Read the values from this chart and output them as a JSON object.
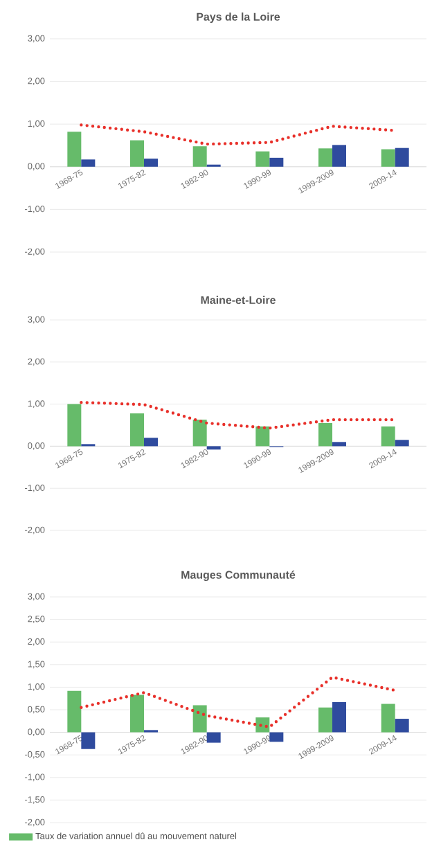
{
  "chart_data": [
    {
      "type": "bar",
      "title": "Pays de la Loire",
      "categories": [
        "1968-75",
        "1975-82",
        "1982-90",
        "1990-99",
        "1999-2009",
        "2009-14"
      ],
      "series": [
        {
          "color": "#66bb6a",
          "values": [
            0.82,
            0.62,
            0.48,
            0.36,
            0.43,
            0.41
          ]
        },
        {
          "color": "#2f4b9e",
          "values": [
            0.17,
            0.19,
            0.05,
            0.21,
            0.51,
            0.44
          ]
        },
        {
          "type": "line",
          "color": "#e8302a",
          "line_style": "dotted",
          "values": [
            0.98,
            0.82,
            0.53,
            0.57,
            0.95,
            0.85
          ]
        }
      ],
      "ylim": [
        -2,
        3
      ],
      "yticks": [
        {
          "value": -2,
          "label": "-2,00"
        },
        {
          "value": -1,
          "label": "-1,00"
        },
        {
          "value": 0,
          "label": "0,00"
        },
        {
          "value": 1,
          "label": "1,00"
        },
        {
          "value": 2,
          "label": "2,00"
        },
        {
          "value": 3,
          "label": "3,00"
        }
      ],
      "grid": "y"
    },
    {
      "type": "bar",
      "title": "Maine-et-Loire",
      "categories": [
        "1968-75",
        "1975-82",
        "1982-90",
        "1990-99",
        "1999-2009",
        "2009-14"
      ],
      "series": [
        {
          "color": "#66bb6a",
          "values": [
            1.0,
            0.78,
            0.63,
            0.47,
            0.55,
            0.47
          ]
        },
        {
          "color": "#2f4b9e",
          "values": [
            0.05,
            0.2,
            -0.08,
            -0.02,
            0.1,
            0.15
          ]
        },
        {
          "type": "line",
          "color": "#e8302a",
          "line_style": "dotted",
          "values": [
            1.04,
            0.99,
            0.55,
            0.43,
            0.63,
            0.63
          ]
        }
      ],
      "ylim": [
        -2,
        3
      ],
      "yticks": [
        {
          "value": -2,
          "label": "-2,00"
        },
        {
          "value": -1,
          "label": "-1,00"
        },
        {
          "value": 0,
          "label": "0,00"
        },
        {
          "value": 1,
          "label": "1,00"
        },
        {
          "value": 2,
          "label": "2,00"
        },
        {
          "value": 3,
          "label": "3,00"
        }
      ],
      "grid": "y"
    },
    {
      "type": "bar",
      "title": "Mauges Communauté",
      "categories": [
        "1968-75",
        "1975-82",
        "1982-90",
        "1990-99",
        "1999-2009",
        "2009-14"
      ],
      "series": [
        {
          "name": "Taux de variation annuel dû au mouvement naturel",
          "color": "#66bb6a",
          "values": [
            0.92,
            0.83,
            0.6,
            0.33,
            0.55,
            0.63
          ]
        },
        {
          "color": "#2f4b9e",
          "values": [
            -0.37,
            0.05,
            -0.23,
            -0.21,
            0.67,
            0.3
          ]
        },
        {
          "type": "line",
          "color": "#e8302a",
          "line_style": "dotted",
          "values": [
            0.55,
            0.88,
            0.37,
            0.12,
            1.22,
            0.93
          ]
        }
      ],
      "ylim": [
        -2,
        3
      ],
      "yticks": [
        {
          "value": -2,
          "label": "-2,00"
        },
        {
          "value": -1.5,
          "label": "-1,50"
        },
        {
          "value": -1,
          "label": "-1,00"
        },
        {
          "value": -0.5,
          "label": "-0,50"
        },
        {
          "value": 0,
          "label": "0,00"
        },
        {
          "value": 0.5,
          "label": "0,50"
        },
        {
          "value": 1,
          "label": "1,00"
        },
        {
          "value": 1.5,
          "label": "1,50"
        },
        {
          "value": 2,
          "label": "2,00"
        },
        {
          "value": 2.5,
          "label": "2,50"
        },
        {
          "value": 3,
          "label": "3,00"
        }
      ],
      "grid": "y",
      "legend": "bottom"
    }
  ]
}
